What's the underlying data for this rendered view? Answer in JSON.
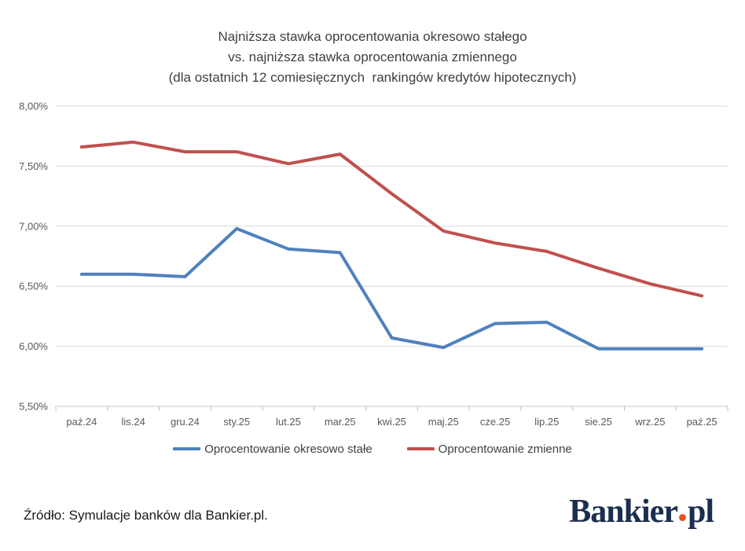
{
  "title": {
    "line1": "Najniższa stawka oprocentowania okresowo stałego",
    "line2": "vs. najniższa stawka oprocentowania zmiennego",
    "line3": "(dla ostatnich 12 comiesięcznych  rankingów kredytów hipotecznych)"
  },
  "chart_data": {
    "type": "line",
    "categories": [
      "paź.24",
      "lis.24",
      "gru.24",
      "sty.25",
      "lut.25",
      "mar.25",
      "kwi.25",
      "maj.25",
      "cze.25",
      "lip.25",
      "sie.25",
      "wrz.25",
      "paź.25"
    ],
    "series": [
      {
        "name": "Oprocentowanie okresowo stałe",
        "color": "#4f81bd",
        "values": [
          6.6,
          6.6,
          6.58,
          6.98,
          6.81,
          6.78,
          6.07,
          5.99,
          6.19,
          6.2,
          5.98,
          5.98,
          5.98
        ]
      },
      {
        "name": "Oprocentowanie zmienne",
        "color": "#c0504d",
        "values": [
          7.66,
          7.7,
          7.62,
          7.62,
          7.52,
          7.6,
          7.27,
          6.96,
          6.86,
          6.79,
          6.65,
          6.52,
          6.42
        ]
      }
    ],
    "ylim": [
      5.5,
      8.0
    ],
    "y_tick_labels": [
      "5,50%",
      "6,00%",
      "6,50%",
      "7,00%",
      "7,50%",
      "8,00%"
    ],
    "grid": "horizontal",
    "legend_position": "bottom"
  },
  "footer": {
    "source": "Źródło: Symulacje banków dla Bankier.pl."
  },
  "logo": {
    "main": "Bankier",
    "suffix": "pl",
    "navy": "#1b2e4e",
    "dot": "#e8501e"
  },
  "colors": {
    "background": "#ffffff",
    "grid": "#d9d9d9",
    "axis": "#c6c6c6",
    "tick": "#bfbfbf",
    "tick_text": "#595959",
    "title_text": "#3f3f3f",
    "legend_text": "#3f3f3f",
    "source_text": "#1a1a1a"
  }
}
